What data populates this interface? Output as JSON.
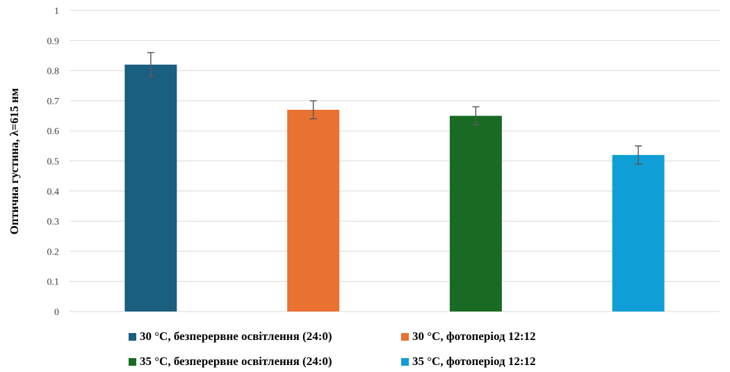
{
  "chart_data": {
    "type": "bar",
    "title": "",
    "xlabel": "",
    "ylabel": "Оптична густина, λ=615 нм",
    "ylim": [
      0,
      1
    ],
    "yticks": [
      "0",
      "0.1",
      "0.2",
      "0.3",
      "0.4",
      "0.5",
      "0.6",
      "0.7",
      "0.8",
      "0.9",
      "1"
    ],
    "grid": true,
    "legend_position": "bottom",
    "series": [
      {
        "name": "30 °С, безперервне освітлення (24:0)",
        "value": 0.82,
        "error": 0.04,
        "color": "#1a5e80"
      },
      {
        "name": "30 °С, фотоперіод 12:12",
        "value": 0.67,
        "error": 0.03,
        "color": "#e97132"
      },
      {
        "name": "35 °С, безперервне освітлення (24:0)",
        "value": 0.65,
        "error": 0.03,
        "color": "#196b24"
      },
      {
        "name": "35 °С, фотоперіод 12:12",
        "value": 0.52,
        "error": 0.03,
        "color": "#0f9ed5"
      }
    ]
  }
}
